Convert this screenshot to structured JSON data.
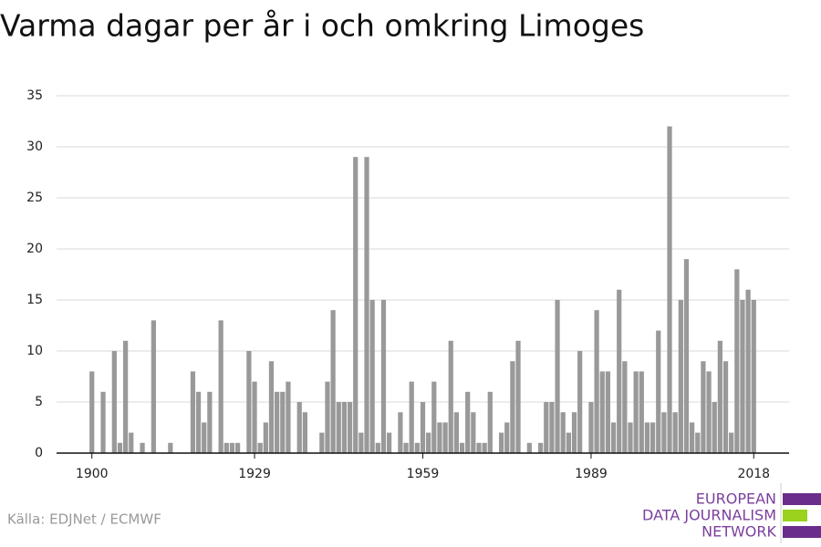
{
  "chart_data": {
    "type": "bar",
    "title": "Varma dagar per år i och omkring Limoges",
    "source": "Källa: EDJNet / ECMWF",
    "logo": [
      "EUROPEAN",
      "DATA JOURNALISM",
      "NETWORK"
    ],
    "color": "#999999",
    "x": [
      1900,
      1901,
      1902,
      1903,
      1904,
      1905,
      1906,
      1907,
      1908,
      1909,
      1910,
      1911,
      1912,
      1913,
      1914,
      1915,
      1916,
      1917,
      1918,
      1919,
      1920,
      1921,
      1922,
      1923,
      1924,
      1925,
      1926,
      1927,
      1928,
      1929,
      1930,
      1931,
      1932,
      1933,
      1934,
      1935,
      1936,
      1937,
      1938,
      1939,
      1940,
      1941,
      1942,
      1943,
      1944,
      1945,
      1946,
      1947,
      1948,
      1949,
      1950,
      1951,
      1952,
      1953,
      1954,
      1955,
      1956,
      1957,
      1958,
      1959,
      1960,
      1961,
      1962,
      1963,
      1964,
      1965,
      1966,
      1967,
      1968,
      1969,
      1970,
      1971,
      1972,
      1973,
      1974,
      1975,
      1976,
      1977,
      1978,
      1979,
      1980,
      1981,
      1982,
      1983,
      1984,
      1985,
      1986,
      1987,
      1988,
      1989,
      1990,
      1991,
      1992,
      1993,
      1994,
      1995,
      1996,
      1997,
      1998,
      1999,
      2000,
      2001,
      2002,
      2003,
      2004,
      2005,
      2006,
      2007,
      2008,
      2009,
      2010,
      2011,
      2012,
      2013,
      2014,
      2015,
      2016,
      2017,
      2018
    ],
    "values": [
      8,
      0,
      6,
      0,
      10,
      1,
      11,
      2,
      0,
      1,
      0,
      13,
      0,
      0,
      1,
      0,
      0,
      0,
      8,
      6,
      3,
      6,
      0,
      13,
      1,
      1,
      1,
      0,
      10,
      7,
      1,
      3,
      9,
      6,
      6,
      7,
      0,
      5,
      4,
      0,
      0,
      2,
      7,
      14,
      5,
      5,
      5,
      29,
      2,
      29,
      15,
      1,
      15,
      2,
      0,
      4,
      1,
      7,
      1,
      5,
      2,
      7,
      3,
      3,
      11,
      4,
      1,
      6,
      4,
      1,
      1,
      6,
      0,
      2,
      3,
      9,
      11,
      0,
      1,
      0,
      1,
      5,
      5,
      15,
      4,
      2,
      4,
      10,
      0,
      5,
      14,
      8,
      8,
      3,
      16,
      9,
      3,
      8,
      8,
      3,
      3,
      12,
      4,
      32,
      4,
      15,
      19,
      3,
      2,
      9,
      8,
      5,
      11,
      9,
      2,
      18,
      15,
      16,
      15
    ],
    "xlim": [
      1893.7,
      2024.3
    ],
    "xticks": [
      1900,
      1929,
      1959,
      1989,
      2018
    ],
    "ylim": [
      0,
      35
    ],
    "yticks": [
      0,
      5,
      10,
      15,
      20,
      25,
      30,
      35
    ],
    "grid": true
  }
}
